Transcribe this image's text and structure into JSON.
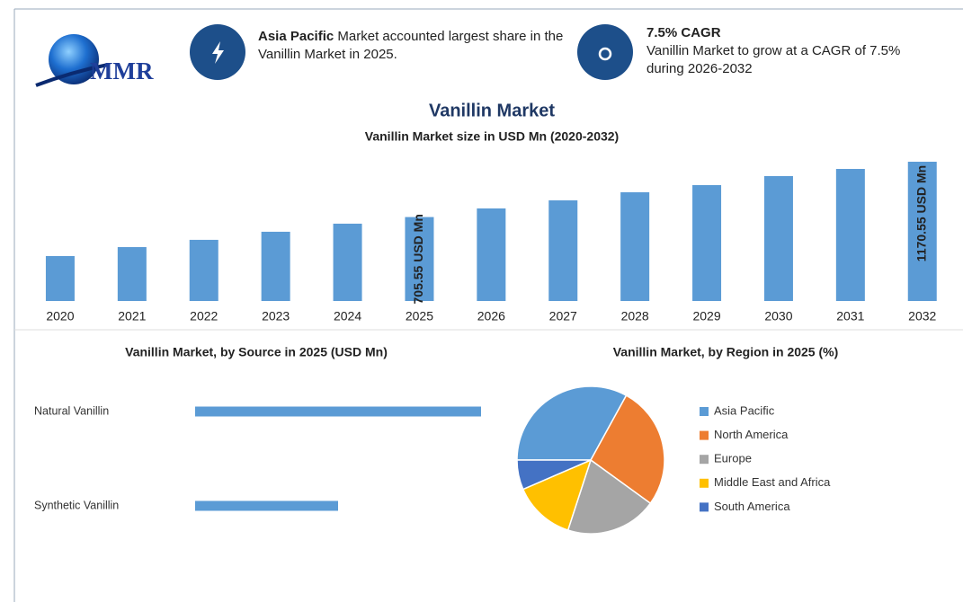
{
  "header": {
    "logo": "MMR",
    "highlights": [
      {
        "bold": "Asia Pacific",
        "text": "Market accounted largest share in the Vanillin Market in 2025."
      },
      {
        "title": "7.5% CAGR",
        "text": "Vanillin Market to grow at a CAGR of 7.5% during 2026-2032"
      }
    ]
  },
  "chart_data": [
    {
      "type": "bar",
      "title": "Vanillin Market",
      "subtitle": "Vanillin Market size in USD Mn (2020-2032)",
      "categories": [
        "2020",
        "2021",
        "2022",
        "2023",
        "2024",
        "2025",
        "2026",
        "2027",
        "2028",
        "2029",
        "2030",
        "2031",
        "2032"
      ],
      "values": [
        378,
        453,
        514,
        582,
        650,
        705.55,
        778,
        846,
        914,
        974,
        1050,
        1110,
        1170.55
      ],
      "value_labels": [
        null,
        null,
        null,
        null,
        null,
        "705.55 USD Mn",
        null,
        null,
        null,
        null,
        null,
        null,
        "1170.55 USD Mn"
      ],
      "color": "#5b9bd5"
    },
    {
      "type": "hbar",
      "title": "Vanillin Market, by Source in 2025 (USD Mn)",
      "categories": [
        "Natural Vanillin",
        "Synthetic Vanillin"
      ],
      "values": [
        470,
        235
      ],
      "color": "#5b9bd5"
    },
    {
      "type": "pie",
      "title": "Vanillin Market, by Region in 2025 (%)",
      "categories": [
        "Asia Pacific",
        "North America",
        "Europe",
        "Middle East and Africa",
        "South America"
      ],
      "values": [
        33,
        27,
        20,
        13.5,
        6.5
      ],
      "colors": [
        "#5b9bd5",
        "#ed7d31",
        "#a5a5a5",
        "#ffc000",
        "#4472c4"
      ],
      "legend": "right"
    }
  ]
}
